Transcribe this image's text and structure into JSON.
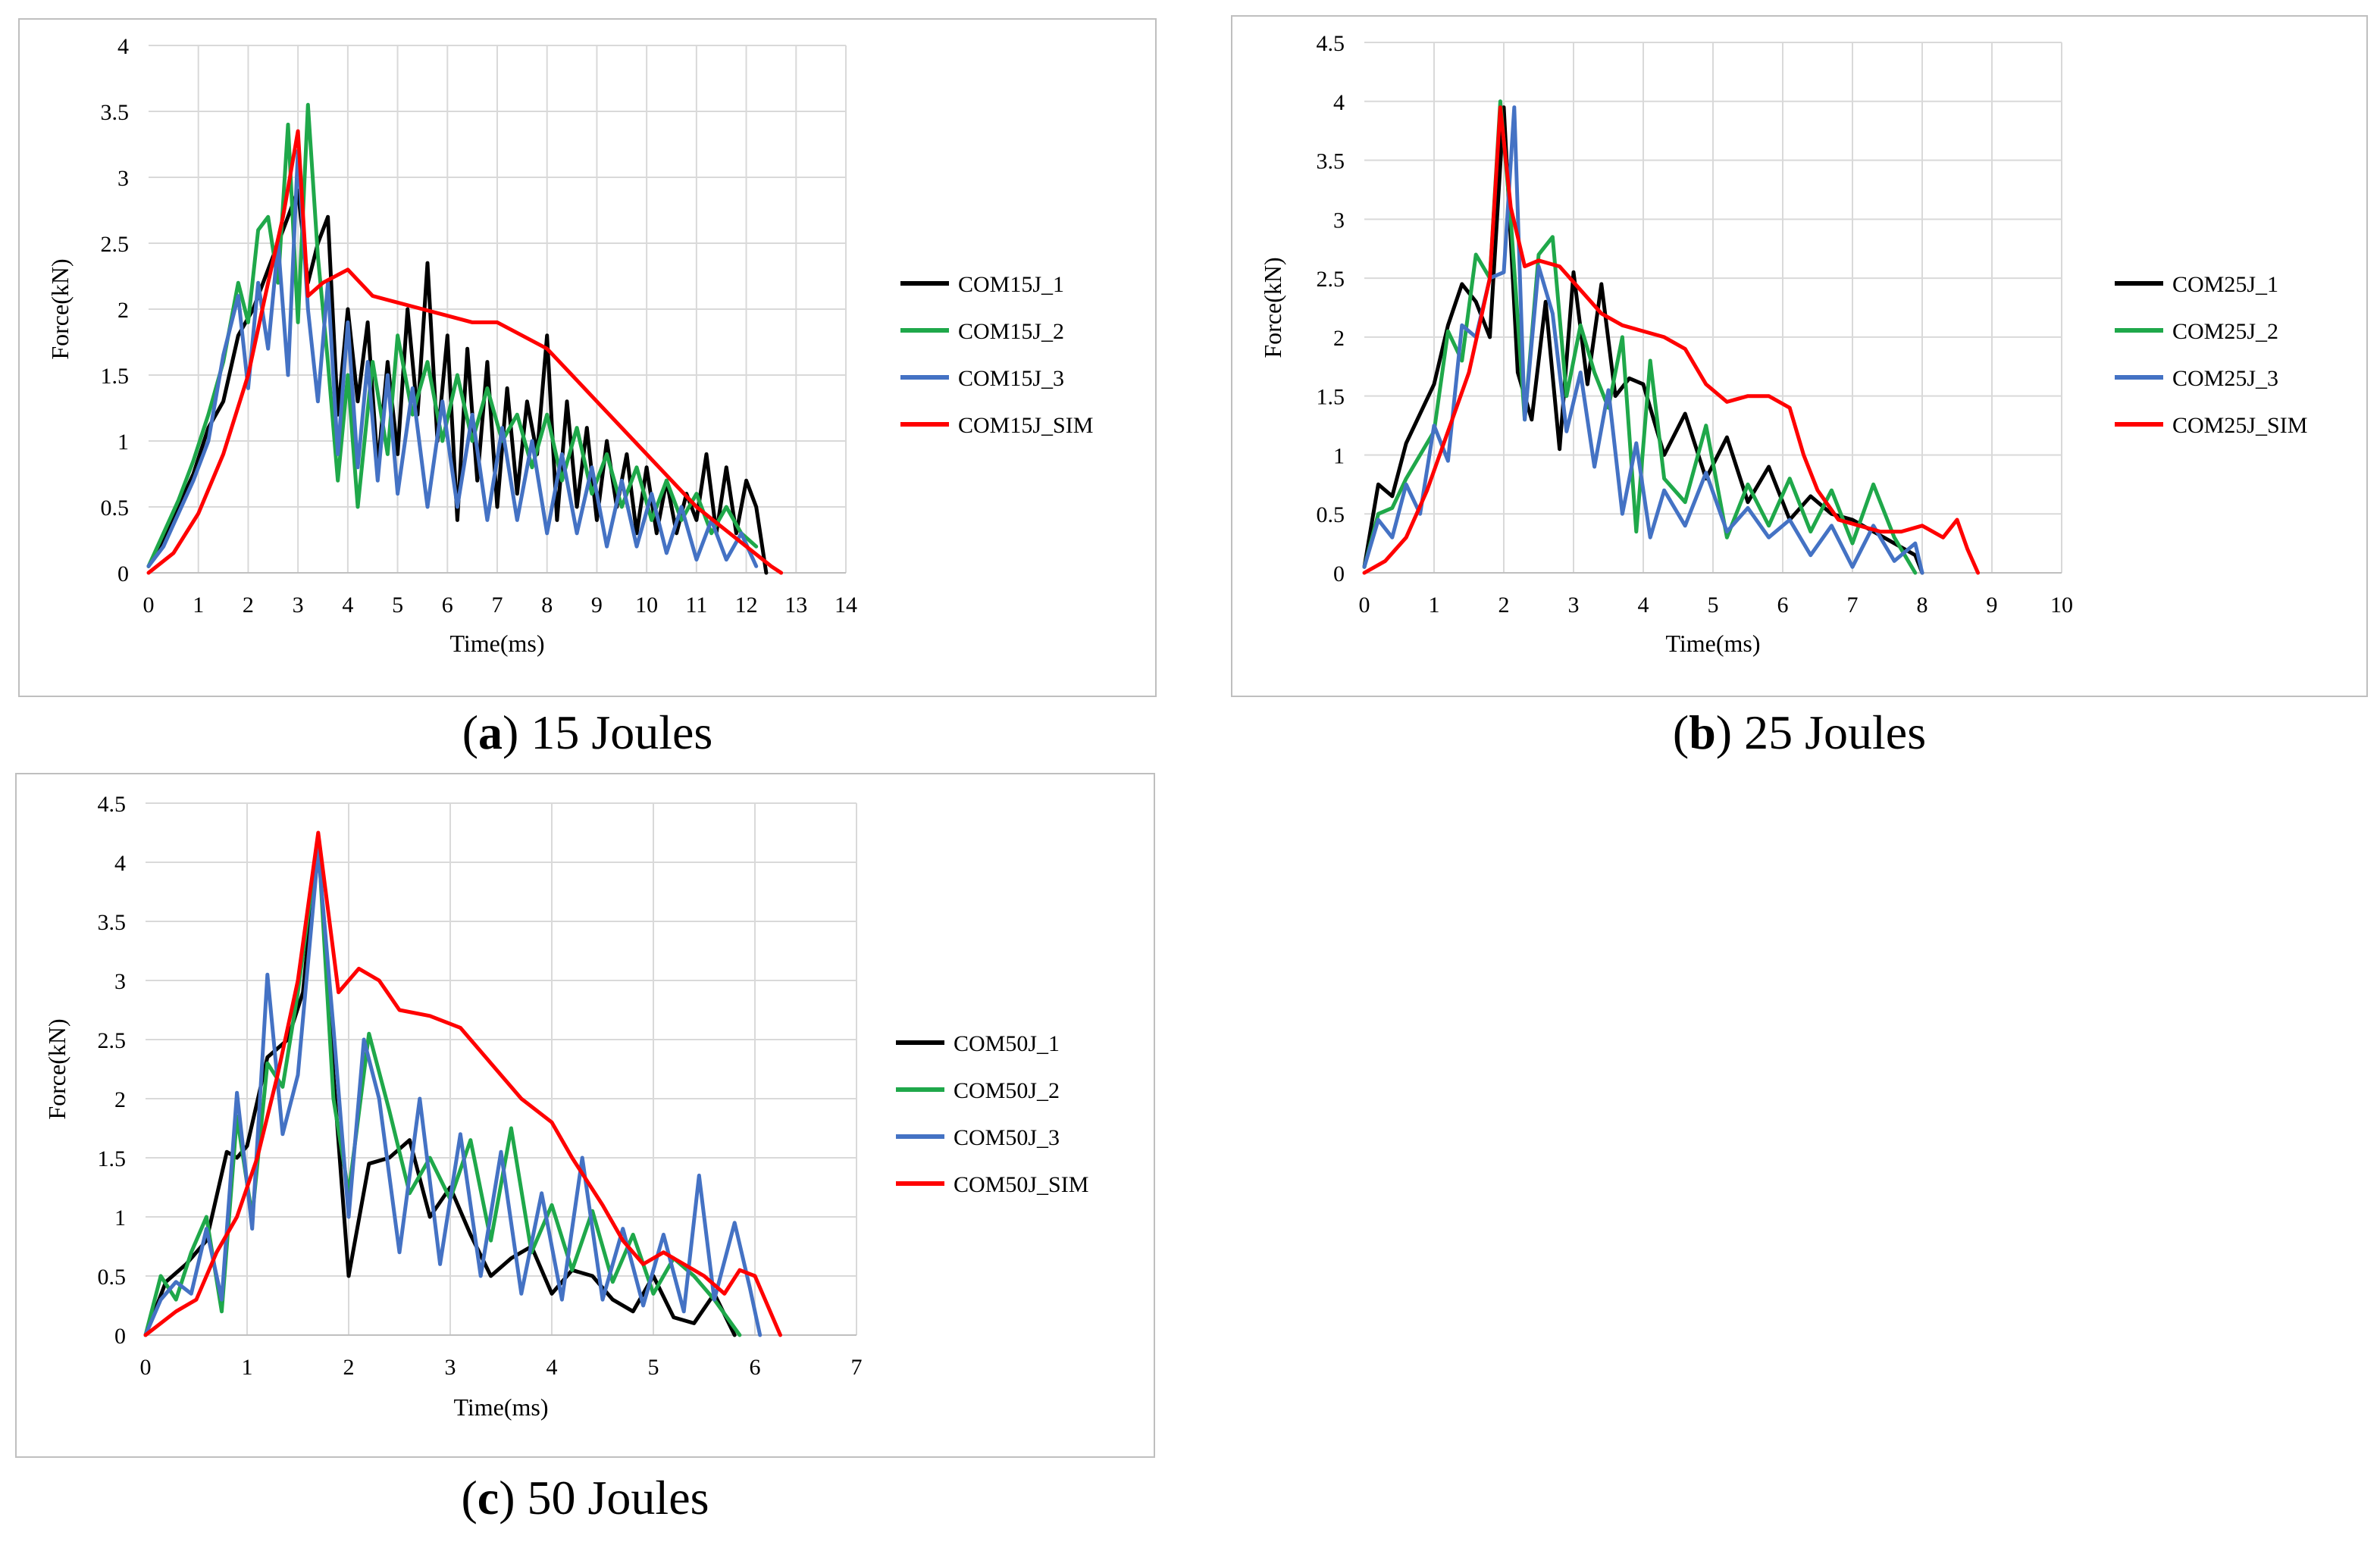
{
  "chart_data": [
    {
      "type": "line",
      "caption": {
        "letter": "a",
        "text": "15 Joules"
      },
      "xlabel": "Time(ms)",
      "ylabel": "Force(kN)",
      "xlim": [
        0,
        14
      ],
      "xticks": [
        0,
        1,
        2,
        3,
        4,
        5,
        6,
        7,
        8,
        9,
        10,
        11,
        12,
        13,
        14
      ],
      "ylim": [
        0,
        4
      ],
      "yticks": [
        0,
        0.5,
        1,
        1.5,
        2,
        2.5,
        3,
        3.5,
        4
      ],
      "legend": "right",
      "series": [
        {
          "name": "COM15J_1",
          "color": "#000000",
          "x": [
            0,
            0.3,
            0.6,
            0.9,
            1.2,
            1.5,
            1.8,
            2.1,
            2.4,
            2.7,
            3.0,
            3.2,
            3.4,
            3.6,
            3.8,
            4.0,
            4.2,
            4.4,
            4.6,
            4.8,
            5.0,
            5.2,
            5.4,
            5.6,
            5.8,
            6.0,
            6.2,
            6.4,
            6.6,
            6.8,
            7.0,
            7.2,
            7.4,
            7.6,
            7.8,
            8.0,
            8.2,
            8.4,
            8.6,
            8.8,
            9.0,
            9.2,
            9.4,
            9.6,
            9.8,
            10.0,
            10.2,
            10.4,
            10.6,
            10.8,
            11.0,
            11.2,
            11.4,
            11.6,
            11.8,
            12.0,
            12.2,
            12.4
          ],
          "y": [
            0.05,
            0.25,
            0.5,
            0.75,
            1.1,
            1.3,
            1.8,
            2.0,
            2.3,
            2.6,
            2.9,
            2.2,
            2.5,
            2.7,
            1.2,
            2.0,
            1.3,
            1.9,
            0.8,
            1.6,
            0.9,
            2.0,
            1.2,
            2.35,
            1.0,
            1.8,
            0.4,
            1.7,
            0.7,
            1.6,
            0.5,
            1.4,
            0.6,
            1.3,
            0.9,
            1.8,
            0.4,
            1.3,
            0.5,
            1.1,
            0.4,
            1.0,
            0.5,
            0.9,
            0.3,
            0.8,
            0.3,
            0.7,
            0.3,
            0.6,
            0.4,
            0.9,
            0.3,
            0.8,
            0.3,
            0.7,
            0.5,
            0.0
          ]
        },
        {
          "name": "COM15J_2",
          "color": "#1fa84a",
          "x": [
            0,
            0.3,
            0.6,
            0.9,
            1.2,
            1.5,
            1.8,
            2.0,
            2.2,
            2.4,
            2.6,
            2.8,
            3.0,
            3.2,
            3.4,
            3.6,
            3.8,
            4.0,
            4.2,
            4.5,
            4.8,
            5.0,
            5.3,
            5.6,
            5.9,
            6.2,
            6.5,
            6.8,
            7.1,
            7.4,
            7.7,
            8.0,
            8.3,
            8.6,
            8.9,
            9.2,
            9.5,
            9.8,
            10.1,
            10.4,
            10.7,
            11.0,
            11.3,
            11.6,
            11.9,
            12.2
          ],
          "y": [
            0.05,
            0.3,
            0.55,
            0.85,
            1.2,
            1.6,
            2.2,
            1.9,
            2.6,
            2.7,
            2.2,
            3.4,
            1.9,
            3.55,
            2.4,
            1.6,
            0.7,
            1.5,
            0.5,
            1.6,
            0.9,
            1.8,
            1.2,
            1.6,
            1.0,
            1.5,
            1.0,
            1.4,
            1.0,
            1.2,
            0.8,
            1.2,
            0.7,
            1.1,
            0.6,
            0.9,
            0.5,
            0.8,
            0.4,
            0.7,
            0.4,
            0.6,
            0.3,
            0.5,
            0.3,
            0.2
          ]
        },
        {
          "name": "COM15J_3",
          "color": "#4472c4",
          "x": [
            0,
            0.3,
            0.6,
            0.9,
            1.2,
            1.5,
            1.8,
            2.0,
            2.2,
            2.4,
            2.6,
            2.8,
            3.0,
            3.2,
            3.4,
            3.6,
            3.8,
            4.0,
            4.2,
            4.4,
            4.6,
            4.8,
            5.0,
            5.3,
            5.6,
            5.9,
            6.2,
            6.5,
            6.8,
            7.1,
            7.4,
            7.7,
            8.0,
            8.3,
            8.6,
            8.9,
            9.2,
            9.5,
            9.8,
            10.1,
            10.4,
            10.7,
            11.0,
            11.3,
            11.6,
            11.9,
            12.2
          ],
          "y": [
            0.05,
            0.2,
            0.45,
            0.7,
            1.0,
            1.65,
            2.1,
            1.4,
            2.2,
            1.7,
            2.5,
            1.5,
            3.2,
            2.0,
            1.3,
            2.2,
            0.9,
            1.9,
            0.8,
            1.6,
            0.7,
            1.5,
            0.6,
            1.4,
            0.5,
            1.3,
            0.5,
            1.2,
            0.4,
            1.1,
            0.4,
            1.0,
            0.3,
            0.9,
            0.3,
            0.8,
            0.2,
            0.7,
            0.2,
            0.6,
            0.15,
            0.5,
            0.1,
            0.4,
            0.1,
            0.3,
            0.05
          ]
        },
        {
          "name": "COM15J_SIM",
          "color": "#ff0000",
          "x": [
            0,
            0.5,
            1.0,
            1.5,
            2.0,
            2.4,
            2.7,
            3.0,
            3.2,
            3.5,
            4.0,
            4.5,
            5.0,
            5.5,
            6.0,
            6.5,
            7.0,
            7.5,
            8.0,
            8.5,
            9.0,
            9.5,
            10.0,
            10.5,
            11.0,
            11.5,
            12.0,
            12.5,
            12.7
          ],
          "y": [
            0.0,
            0.15,
            0.45,
            0.9,
            1.5,
            2.2,
            2.7,
            3.35,
            2.1,
            2.2,
            2.3,
            2.1,
            2.05,
            2.0,
            1.95,
            1.9,
            1.9,
            1.8,
            1.7,
            1.5,
            1.3,
            1.1,
            0.9,
            0.7,
            0.5,
            0.35,
            0.2,
            0.05,
            0.0
          ]
        }
      ]
    },
    {
      "type": "line",
      "caption": {
        "letter": "b",
        "text": "25 Joules"
      },
      "xlabel": "Time(ms)",
      "ylabel": "Force(kN)",
      "xlim": [
        0,
        10
      ],
      "xticks": [
        0,
        1,
        2,
        3,
        4,
        5,
        6,
        7,
        8,
        9,
        10
      ],
      "ylim": [
        0,
        4.5
      ],
      "yticks": [
        0,
        0.5,
        1,
        1.5,
        2,
        2.5,
        3,
        3.5,
        4,
        4.5
      ],
      "legend": "right",
      "series": [
        {
          "name": "COM25J_1",
          "color": "#000000",
          "x": [
            0,
            0.2,
            0.4,
            0.6,
            0.8,
            1.0,
            1.2,
            1.4,
            1.6,
            1.8,
            2.0,
            2.2,
            2.4,
            2.6,
            2.8,
            3.0,
            3.2,
            3.4,
            3.6,
            3.8,
            4.0,
            4.3,
            4.6,
            4.9,
            5.2,
            5.5,
            5.8,
            6.1,
            6.4,
            6.7,
            7.0,
            7.3,
            7.6,
            7.9,
            8.0
          ],
          "y": [
            0.05,
            0.75,
            0.65,
            1.1,
            1.35,
            1.6,
            2.1,
            2.45,
            2.3,
            2.0,
            3.95,
            1.7,
            1.3,
            2.3,
            1.05,
            2.55,
            1.6,
            2.45,
            1.5,
            1.65,
            1.6,
            1.0,
            1.35,
            0.8,
            1.15,
            0.6,
            0.9,
            0.45,
            0.65,
            0.5,
            0.45,
            0.35,
            0.25,
            0.15,
            0.0
          ]
        },
        {
          "name": "COM25J_2",
          "color": "#1fa84a",
          "x": [
            0,
            0.2,
            0.4,
            0.6,
            0.8,
            1.0,
            1.2,
            1.4,
            1.6,
            1.8,
            1.95,
            2.1,
            2.3,
            2.5,
            2.7,
            2.9,
            3.1,
            3.3,
            3.5,
            3.7,
            3.9,
            4.1,
            4.3,
            4.6,
            4.9,
            5.2,
            5.5,
            5.8,
            6.1,
            6.4,
            6.7,
            7.0,
            7.3,
            7.6,
            7.9
          ],
          "y": [
            0.05,
            0.5,
            0.55,
            0.8,
            1.0,
            1.2,
            2.05,
            1.8,
            2.7,
            2.5,
            4.0,
            3.0,
            1.3,
            2.7,
            2.85,
            1.5,
            2.1,
            1.7,
            1.4,
            2.0,
            0.35,
            1.8,
            0.8,
            0.6,
            1.25,
            0.3,
            0.75,
            0.4,
            0.8,
            0.35,
            0.7,
            0.25,
            0.75,
            0.3,
            0.0
          ]
        },
        {
          "name": "COM25J_3",
          "color": "#4472c4",
          "x": [
            0,
            0.2,
            0.4,
            0.6,
            0.8,
            1.0,
            1.2,
            1.4,
            1.6,
            1.8,
            2.0,
            2.15,
            2.3,
            2.5,
            2.7,
            2.9,
            3.1,
            3.3,
            3.5,
            3.7,
            3.9,
            4.1,
            4.3,
            4.6,
            4.9,
            5.2,
            5.5,
            5.8,
            6.1,
            6.4,
            6.7,
            7.0,
            7.3,
            7.6,
            7.9,
            8.0
          ],
          "y": [
            0.05,
            0.45,
            0.3,
            0.75,
            0.5,
            1.25,
            0.95,
            2.1,
            2.0,
            2.5,
            2.55,
            3.95,
            1.3,
            2.6,
            2.2,
            1.2,
            1.7,
            0.9,
            1.55,
            0.5,
            1.1,
            0.3,
            0.7,
            0.4,
            0.85,
            0.35,
            0.55,
            0.3,
            0.45,
            0.15,
            0.4,
            0.05,
            0.4,
            0.1,
            0.25,
            0.0
          ]
        },
        {
          "name": "COM25J_SIM",
          "color": "#ff0000",
          "x": [
            0,
            0.3,
            0.6,
            0.9,
            1.2,
            1.5,
            1.8,
            1.95,
            2.1,
            2.3,
            2.5,
            2.8,
            3.1,
            3.4,
            3.7,
            4.0,
            4.3,
            4.6,
            4.9,
            5.2,
            5.5,
            5.8,
            6.1,
            6.3,
            6.5,
            6.8,
            7.1,
            7.4,
            7.7,
            8.0,
            8.3,
            8.5,
            8.65,
            8.8
          ],
          "y": [
            0.0,
            0.1,
            0.3,
            0.7,
            1.2,
            1.7,
            2.5,
            3.95,
            3.1,
            2.6,
            2.65,
            2.6,
            2.4,
            2.2,
            2.1,
            2.05,
            2.0,
            1.9,
            1.6,
            1.45,
            1.5,
            1.5,
            1.4,
            1.0,
            0.7,
            0.45,
            0.4,
            0.35,
            0.35,
            0.4,
            0.3,
            0.45,
            0.2,
            0.0
          ]
        }
      ]
    },
    {
      "type": "line",
      "caption": {
        "letter": "c",
        "text": "50 Joules"
      },
      "xlabel": "Time(ms)",
      "ylabel": "Force(kN)",
      "xlim": [
        0,
        7
      ],
      "xticks": [
        0,
        1,
        2,
        3,
        4,
        5,
        6,
        7
      ],
      "ylim": [
        0,
        4.5
      ],
      "yticks": [
        0,
        0.5,
        1,
        1.5,
        2,
        2.5,
        3,
        3.5,
        4,
        4.5
      ],
      "legend": "right",
      "series": [
        {
          "name": "COM50J_1",
          "color": "#000000",
          "x": [
            0,
            0.2,
            0.4,
            0.6,
            0.8,
            0.9,
            1.0,
            1.2,
            1.4,
            1.55,
            1.7,
            1.85,
            2.0,
            2.2,
            2.4,
            2.6,
            2.8,
            3.0,
            3.2,
            3.4,
            3.6,
            3.8,
            4.0,
            4.2,
            4.4,
            4.6,
            4.8,
            5.0,
            5.2,
            5.4,
            5.6,
            5.8
          ],
          "y": [
            0.0,
            0.45,
            0.6,
            0.8,
            1.55,
            1.5,
            1.6,
            2.35,
            2.5,
            2.9,
            4.2,
            2.2,
            0.5,
            1.45,
            1.5,
            1.65,
            1.0,
            1.25,
            0.85,
            0.5,
            0.65,
            0.75,
            0.35,
            0.55,
            0.5,
            0.3,
            0.2,
            0.5,
            0.15,
            0.1,
            0.35,
            0.0
          ]
        },
        {
          "name": "COM50J_2",
          "color": "#1fa84a",
          "x": [
            0,
            0.15,
            0.3,
            0.45,
            0.6,
            0.75,
            0.9,
            1.05,
            1.2,
            1.35,
            1.5,
            1.7,
            1.85,
            2.0,
            2.2,
            2.4,
            2.6,
            2.8,
            3.0,
            3.2,
            3.4,
            3.6,
            3.8,
            4.0,
            4.2,
            4.4,
            4.6,
            4.8,
            5.0,
            5.2,
            5.4,
            5.6,
            5.85
          ],
          "y": [
            0.0,
            0.5,
            0.3,
            0.7,
            1.0,
            0.2,
            1.85,
            1.0,
            2.3,
            2.1,
            2.9,
            4.2,
            2.0,
            1.2,
            2.55,
            1.9,
            1.2,
            1.5,
            1.15,
            1.65,
            0.8,
            1.75,
            0.7,
            1.1,
            0.55,
            1.05,
            0.45,
            0.85,
            0.35,
            0.65,
            0.5,
            0.3,
            0.0
          ]
        },
        {
          "name": "COM50J_3",
          "color": "#4472c4",
          "x": [
            0,
            0.15,
            0.3,
            0.45,
            0.6,
            0.75,
            0.9,
            1.05,
            1.2,
            1.35,
            1.5,
            1.7,
            1.85,
            2.0,
            2.15,
            2.3,
            2.5,
            2.7,
            2.9,
            3.1,
            3.3,
            3.5,
            3.7,
            3.9,
            4.1,
            4.3,
            4.5,
            4.7,
            4.9,
            5.1,
            5.3,
            5.45,
            5.6,
            5.8,
            5.95,
            6.05
          ],
          "y": [
            0.0,
            0.3,
            0.45,
            0.35,
            0.9,
            0.3,
            2.05,
            0.9,
            3.05,
            1.7,
            2.2,
            4.1,
            2.6,
            1.0,
            2.5,
            2.0,
            0.7,
            2.0,
            0.6,
            1.7,
            0.5,
            1.55,
            0.35,
            1.2,
            0.3,
            1.5,
            0.3,
            0.9,
            0.25,
            0.85,
            0.2,
            1.35,
            0.3,
            0.95,
            0.4,
            0.0
          ]
        },
        {
          "name": "COM50J_SIM",
          "color": "#ff0000",
          "x": [
            0,
            0.3,
            0.5,
            0.7,
            0.9,
            1.1,
            1.3,
            1.5,
            1.7,
            1.9,
            2.1,
            2.3,
            2.5,
            2.8,
            3.1,
            3.4,
            3.7,
            4.0,
            4.2,
            4.5,
            4.7,
            4.9,
            5.1,
            5.3,
            5.5,
            5.7,
            5.85,
            6.0,
            6.1,
            6.25
          ],
          "y": [
            0.0,
            0.2,
            0.3,
            0.7,
            1.0,
            1.5,
            2.2,
            3.0,
            4.25,
            2.9,
            3.1,
            3.0,
            2.75,
            2.7,
            2.6,
            2.3,
            2.0,
            1.8,
            1.5,
            1.1,
            0.8,
            0.6,
            0.7,
            0.6,
            0.5,
            0.35,
            0.55,
            0.5,
            0.3,
            0.0
          ]
        }
      ]
    }
  ]
}
